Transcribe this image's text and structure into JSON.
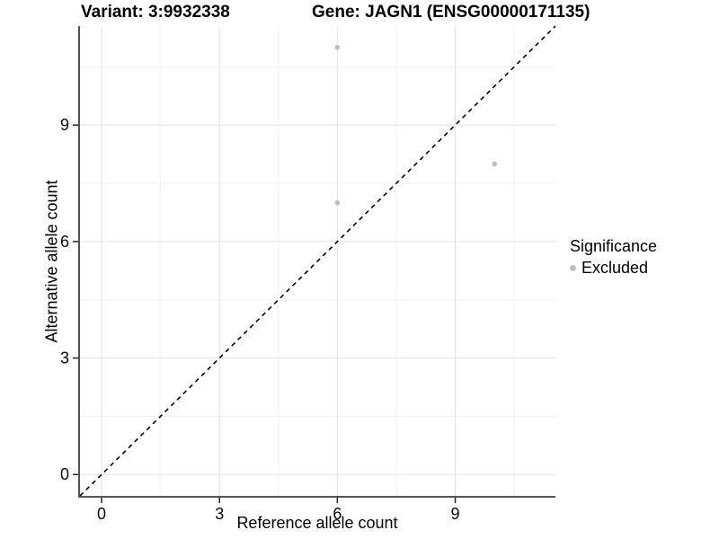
{
  "title": {
    "variant": "Variant: 3:9932338",
    "gene": "Gene: JAGN1 (ENSG00000171135)"
  },
  "axes": {
    "x_label": "Reference allele count",
    "y_label": "Alternative allele count"
  },
  "legend": {
    "title": "Significance",
    "items": [
      {
        "label": "Excluded",
        "color": "#bebebe"
      }
    ]
  },
  "chart_data": {
    "type": "scatter",
    "title": "Variant: 3:9932338    Gene: JAGN1 (ENSG00000171135)",
    "xlabel": "Reference allele count",
    "ylabel": "Alternative allele count",
    "series": [
      {
        "name": "Excluded",
        "color": "#bebebe",
        "points": [
          [
            6,
            11
          ],
          [
            6,
            7
          ],
          [
            10,
            8
          ]
        ]
      }
    ],
    "x_ticks": [
      0,
      3,
      6,
      9
    ],
    "y_ticks": [
      0,
      3,
      6,
      9
    ],
    "x_minor_ticks": [
      1.5,
      4.5,
      7.5,
      10.5
    ],
    "y_minor_ticks": [
      1.5,
      4.5,
      7.5,
      10.5
    ],
    "xlim": [
      -0.55,
      11.55
    ],
    "ylim": [
      -0.55,
      11.55
    ],
    "grid": "major+minor",
    "legend_position": "right",
    "legend_title": "Significance",
    "reference_line": {
      "equation": "y = x",
      "style": "dashed",
      "color": "#000000"
    },
    "colors": {
      "point": "#bebebe",
      "grid_major": "#e3e3e3",
      "grid_minor": "#f1f1f1",
      "axis_line": "#555555",
      "tick": "#222222",
      "text": "#0a0a0a"
    }
  }
}
